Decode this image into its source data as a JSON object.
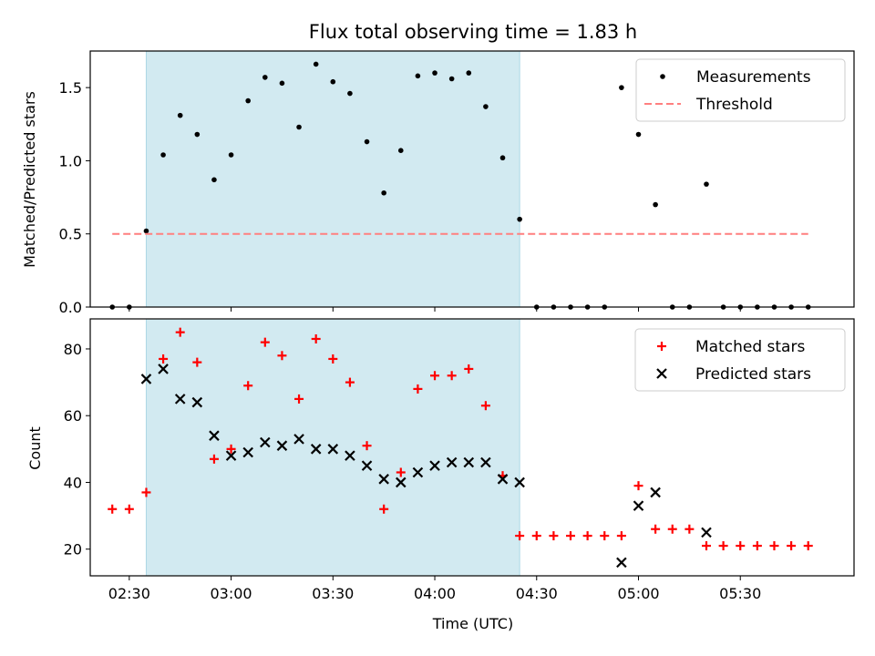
{
  "chart_data": {
    "type": "scatter",
    "title": "Flux total observing time = 1.83 h",
    "xlabel": "Time (UTC)",
    "x_ticks": [
      "02:30",
      "03:00",
      "03:30",
      "04:00",
      "04:30",
      "05:00",
      "05:30"
    ],
    "x_tick_minutes": [
      150,
      180,
      210,
      240,
      270,
      300,
      330
    ],
    "xlim_minutes": [
      138.5,
      363.5
    ],
    "shaded_interval_minutes": [
      155,
      265
    ],
    "shade_color": "#add8e6",
    "panels": [
      {
        "ylabel": "Matched/Predicted stars",
        "ylim": [
          0,
          1.75
        ],
        "y_ticks": [
          0.0,
          0.5,
          1.0,
          1.5
        ],
        "y_tick_labels": [
          "0.0",
          "0.5",
          "1.0",
          "1.5"
        ],
        "legend": [
          "Measurements",
          "Threshold"
        ],
        "legend_position": "upper right",
        "series": [
          {
            "name": "Measurements",
            "marker": "dot",
            "color": "#000000",
            "x": [
              145,
              150,
              155,
              160,
              165,
              170,
              175,
              180,
              185,
              190,
              195,
              200,
              205,
              210,
              215,
              220,
              225,
              230,
              235,
              240,
              245,
              250,
              255,
              260,
              265,
              270,
              275,
              280,
              285,
              290,
              295,
              300,
              305,
              310,
              315,
              320,
              325,
              330,
              335,
              340,
              345,
              350
            ],
            "y": [
              0,
              0,
              0.52,
              1.04,
              1.31,
              1.18,
              0.87,
              1.04,
              1.41,
              1.57,
              1.53,
              1.23,
              1.66,
              1.54,
              1.46,
              1.13,
              0.78,
              1.07,
              1.58,
              1.6,
              1.56,
              1.6,
              1.37,
              1.02,
              0.6,
              0,
              0,
              0,
              0,
              0,
              1.5,
              1.18,
              0.7,
              0,
              0,
              0.84,
              0,
              0,
              0,
              0,
              0,
              0
            ]
          },
          {
            "name": "Threshold",
            "style": "dashed",
            "color": "#ff7f7f",
            "x": [
              145,
              350
            ],
            "y": [
              0.5,
              0.5
            ]
          }
        ]
      },
      {
        "ylabel": "Count",
        "ylim": [
          12,
          89
        ],
        "y_ticks": [
          20,
          40,
          60,
          80
        ],
        "y_tick_labels": [
          "20",
          "40",
          "60",
          "80"
        ],
        "legend": [
          "Matched stars",
          "Predicted stars"
        ],
        "legend_position": "upper right",
        "series": [
          {
            "name": "Matched stars",
            "marker": "plus",
            "color": "#ff0000",
            "x": [
              145,
              150,
              155,
              160,
              165,
              170,
              175,
              180,
              185,
              190,
              195,
              200,
              205,
              210,
              215,
              220,
              225,
              230,
              235,
              240,
              245,
              250,
              255,
              260,
              265,
              270,
              275,
              280,
              285,
              290,
              295,
              300,
              305,
              310,
              315,
              320,
              325,
              330,
              335,
              340,
              345,
              350
            ],
            "y": [
              32,
              32,
              37,
              77,
              85,
              76,
              47,
              50,
              69,
              82,
              78,
              65,
              83,
              77,
              70,
              51,
              32,
              43,
              68,
              72,
              72,
              74,
              63,
              42,
              24,
              24,
              24,
              24,
              24,
              24,
              24,
              39,
              26,
              26,
              26,
              21,
              21,
              21,
              21,
              21,
              21,
              21
            ]
          },
          {
            "name": "Predicted stars",
            "marker": "x",
            "color": "#000000",
            "x": [
              155,
              160,
              165,
              170,
              175,
              180,
              185,
              190,
              195,
              200,
              205,
              210,
              215,
              220,
              225,
              230,
              235,
              240,
              245,
              250,
              255,
              260,
              265,
              295,
              300,
              305,
              320
            ],
            "y": [
              71,
              74,
              65,
              64,
              54,
              48,
              49,
              52,
              51,
              53,
              50,
              50,
              48,
              45,
              41,
              40,
              43,
              45,
              46,
              46,
              46,
              41,
              40,
              16,
              33,
              37,
              25
            ]
          }
        ]
      }
    ]
  }
}
